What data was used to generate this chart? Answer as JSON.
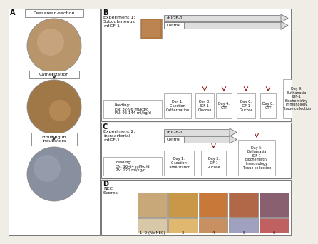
{
  "panel_A_labels": [
    "Ceasarean-section",
    "Catherization",
    "Housing in\nincubators"
  ],
  "panel_B_title": "Experiment 1:\nSubcutaneous\nrhIGF-1",
  "panel_B_days": [
    "Day 1:\nC-section\nCatherization",
    "Day 3:\nIGF-1\nGlucose",
    "Day 4:\nGTT",
    "Day 6:\nIGF-1\nGlucose",
    "Day 8:\nGTT",
    "Day 9:\nEuthanasia\nIGF-1\nBiochemistry\nImmunology\nTissue collection"
  ],
  "panel_B_feeding": "Feeding:\nEN: 32-96 ml/kg/d\nPN: 96-144 ml/kg/d",
  "panel_C_title": "Experiment 2:\nintraarterial\nrhIGF-1",
  "panel_C_days": [
    "Day 1:\nC-section\nCatherization",
    "Day 3:\nIGF-1\nGlucose",
    "Day 5:\nEuthanasia\nIGF-1\nBiochemistry\nImmunology\nTissue collection"
  ],
  "panel_C_feeding": "Feeding:\nEN: 16-64 ml/kg/d\nPN: 120 ml/kg/d",
  "panel_D_label": "NEC\nScores",
  "panel_D_scores": [
    "1- 2 (No NEC)",
    "3",
    "4",
    "5",
    "6"
  ],
  "bg_color": "#f0ece6",
  "white": "#ffffff",
  "border": "#777777",
  "text_dark": "#111111",
  "red_arrow": "#8b1010",
  "arrow_fill": "#dddddd",
  "panel_B_xstart": 0.335,
  "panel_C_xstart": 0.335,
  "panel_D_xstart": 0.335
}
